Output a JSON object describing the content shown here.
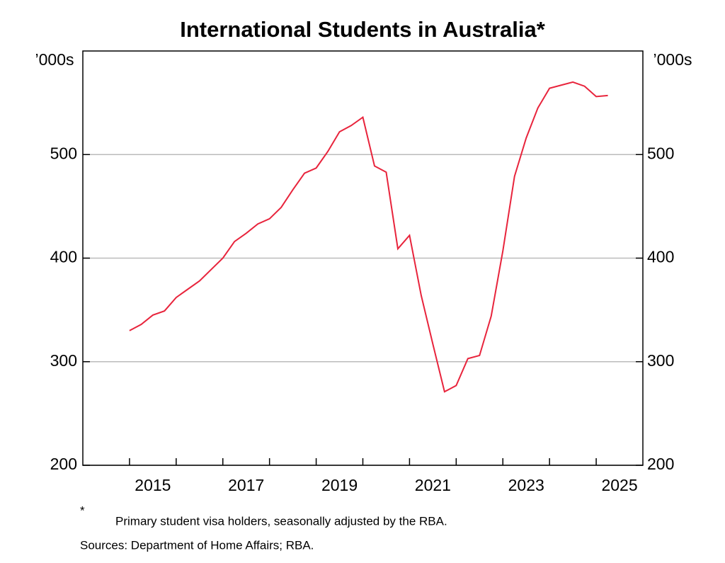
{
  "chart_data": {
    "type": "line",
    "title": "International Students in Australia*",
    "y_unit_label": "’000s",
    "y2_unit_label": "’000s",
    "footnote_marker": "*",
    "footnote": "Primary student visa holders, seasonally adjusted by the RBA.",
    "sources": "Sources: Department of Home Affairs; RBA.",
    "x": [
      2015,
      2015.25,
      2015.5,
      2015.75,
      2016,
      2016.25,
      2016.5,
      2016.75,
      2017,
      2017.25,
      2017.5,
      2017.75,
      2018,
      2018.25,
      2018.5,
      2018.75,
      2019,
      2019.25,
      2019.5,
      2019.75,
      2020,
      2020.25,
      2020.5,
      2020.75,
      2021,
      2021.25,
      2021.5,
      2021.75,
      2022,
      2022.25,
      2022.5,
      2022.75,
      2023,
      2023.25,
      2023.5,
      2023.75,
      2024,
      2024.25,
      2024.5,
      2024.75,
      2025,
      2025.25
    ],
    "series": [
      {
        "color": "#e8243c",
        "values": [
          330,
          336,
          345,
          349,
          362,
          370,
          378,
          389,
          400,
          416,
          424,
          433,
          438,
          449,
          466,
          482,
          487,
          503,
          522,
          528,
          536,
          489,
          483,
          409,
          422,
          364,
          317,
          271,
          277,
          303,
          306,
          344,
          407,
          479,
          516,
          545,
          564,
          567,
          570,
          566,
          556,
          557
        ]
      }
    ],
    "xlim": [
      2014,
      2026
    ],
    "xticks": [
      {
        "value": 2015.5,
        "label": "2015"
      },
      {
        "value": 2017.5,
        "label": "2017"
      },
      {
        "value": 2019.5,
        "label": "2019"
      },
      {
        "value": 2021.5,
        "label": "2021"
      },
      {
        "value": 2023.5,
        "label": "2023"
      },
      {
        "value": 2025.5,
        "label": "2025"
      }
    ],
    "xminor_ticks": [
      2015,
      2016,
      2017,
      2018,
      2019,
      2020,
      2021,
      2022,
      2023,
      2024,
      2025
    ],
    "ylim": [
      200,
      600
    ],
    "yticks": [
      200,
      300,
      400,
      500
    ],
    "y2lim": [
      200,
      600
    ],
    "y2ticks": [
      200,
      300,
      400,
      500
    ],
    "grid": true
  }
}
